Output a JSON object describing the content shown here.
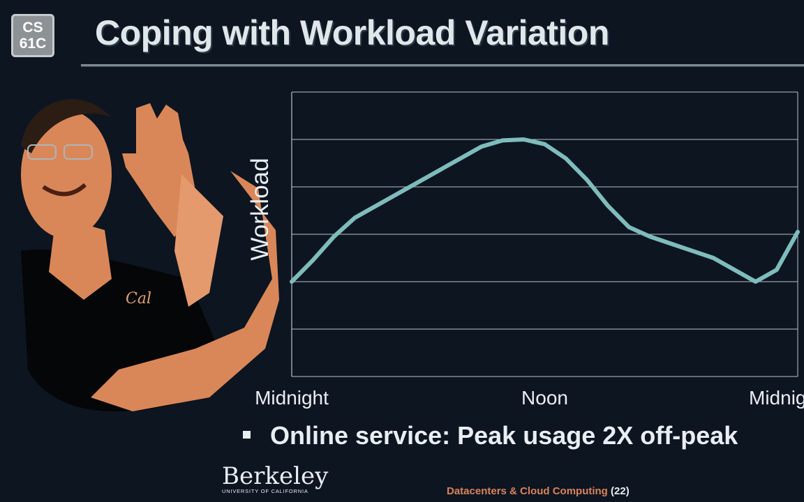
{
  "logo": {
    "line1": "CS",
    "line2": "61C"
  },
  "title": "Coping with Workload Variation",
  "chart_data": {
    "type": "line",
    "ylabel": "Workload",
    "x_tick_labels": [
      "Midnight",
      "Noon",
      "Midnight"
    ],
    "x_range": [
      0,
      24
    ],
    "y_range": [
      0,
      6
    ],
    "grid": true,
    "series": [
      {
        "color": "#7fbcbc",
        "x": [
          0,
          1,
          2,
          3,
          4,
          5,
          6,
          7,
          8,
          9,
          10,
          11,
          12,
          13,
          14,
          15,
          16,
          17,
          18,
          19,
          20,
          21,
          22,
          23,
          24
        ],
        "y": [
          2.0,
          2.45,
          2.95,
          3.35,
          3.6,
          3.85,
          4.1,
          4.35,
          4.6,
          4.85,
          4.98,
          5.0,
          4.9,
          4.6,
          4.15,
          3.6,
          3.15,
          2.95,
          2.8,
          2.65,
          2.5,
          2.25,
          2.0,
          2.25,
          3.05
        ]
      }
    ]
  },
  "bullet": "Online service: Peak usage 2X off-peak",
  "berkeley": {
    "name": "Berkeley",
    "sub": "UNIVERSITY OF CALIFORNIA"
  },
  "footer": {
    "label": "Datacenters & Cloud Computing",
    "page": "(22)"
  }
}
